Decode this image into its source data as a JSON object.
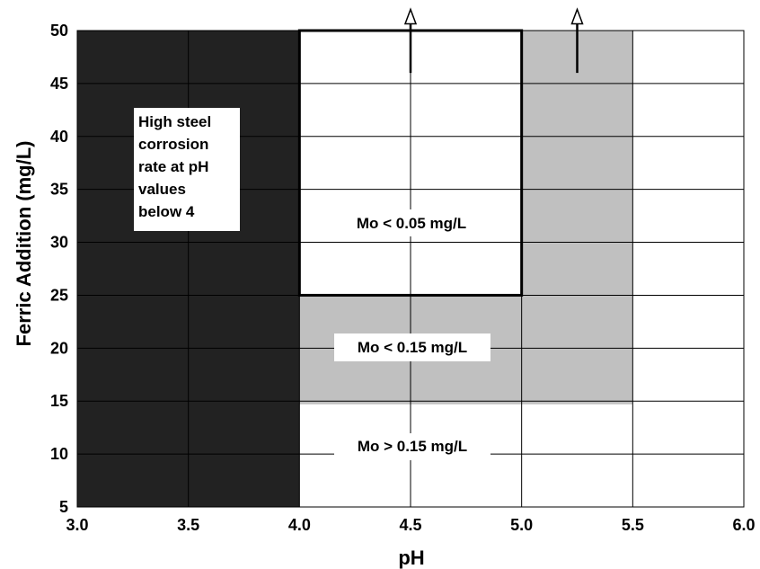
{
  "chart_data": {
    "type": "area",
    "title": "",
    "xlabel": "pH",
    "ylabel": "Ferric Addition (mg/L)",
    "xlim": [
      3.0,
      6.0
    ],
    "ylim": [
      5,
      50
    ],
    "x_ticks": [
      "3.0",
      "3.5",
      "4.0",
      "4.5",
      "5.0",
      "5.5",
      "6.0"
    ],
    "y_ticks": [
      "5",
      "10",
      "15",
      "20",
      "25",
      "30",
      "35",
      "40",
      "45",
      "50"
    ],
    "grid": true,
    "regions": [
      {
        "name": "high-corrosion-region",
        "fill": "#222222",
        "x": [
          3.0,
          4.0
        ],
        "y": [
          5,
          50
        ]
      },
      {
        "name": "mo-under-0.15-region",
        "fill": "#c0c0c0",
        "x": [
          4.0,
          5.5
        ],
        "y": [
          14.7,
          50
        ]
      },
      {
        "name": "mo-under-0.05-region",
        "fill": "#ffffff",
        "outline": true,
        "x": [
          4.0,
          5.0
        ],
        "y": [
          25,
          50
        ]
      }
    ],
    "arrows": [
      {
        "name": "arrow-ph-4-5",
        "x": 4.5,
        "y_from": 46,
        "y_to": 52
      },
      {
        "name": "arrow-ph-5-25",
        "x": 5.25,
        "y_from": 46,
        "y_to": 52
      }
    ],
    "annotations": {
      "corrosion": [
        "High steel",
        "corrosion",
        "rate at pH",
        "values",
        "below 4"
      ],
      "mo_005": "Mo < 0.05 mg/L",
      "mo_015": "Mo < 0.15 mg/L",
      "mo_above_015": "Mo > 0.15 mg/L"
    }
  }
}
